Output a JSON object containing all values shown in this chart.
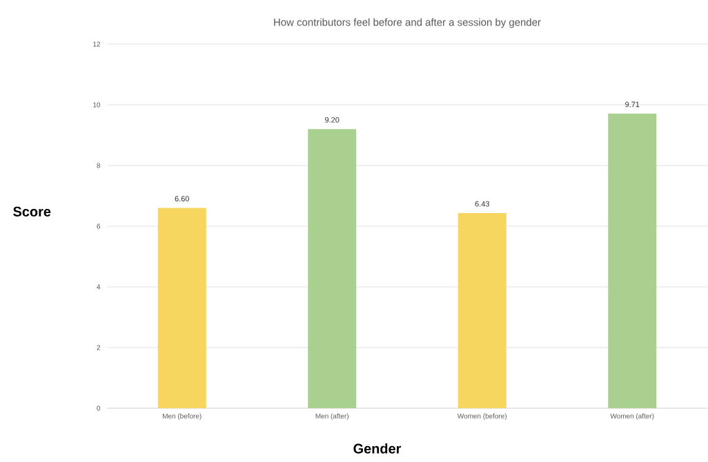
{
  "chart_data": {
    "type": "bar",
    "title": "How contributors feel before and after a session by gender",
    "xlabel": "Gender",
    "ylabel": "Score",
    "categories": [
      "Men (before)",
      "Men (after)",
      "Women (before)",
      "Women (after)"
    ],
    "values": [
      6.6,
      9.2,
      6.43,
      9.71
    ],
    "value_labels": [
      "6.60",
      "9.20",
      "6.43",
      "9.71"
    ],
    "colors": [
      "#f7d660",
      "#a9d08e",
      "#f7d660",
      "#a9d08e"
    ],
    "ylim": [
      0,
      12
    ],
    "yticks": [
      0,
      2,
      4,
      6,
      8,
      10,
      12
    ],
    "grid": "y"
  }
}
